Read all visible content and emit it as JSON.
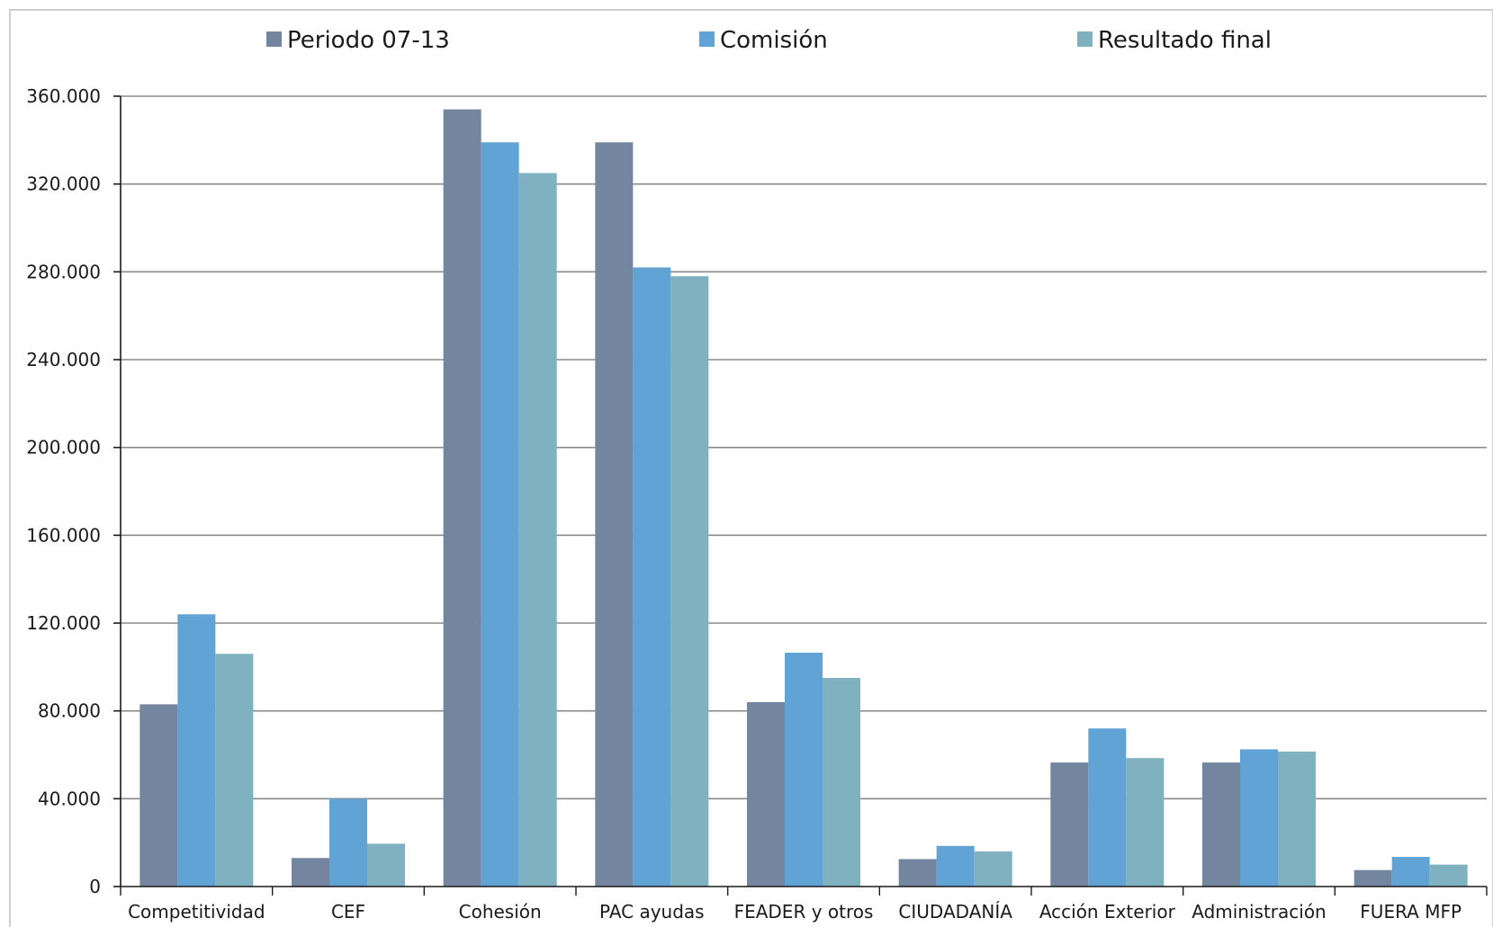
{
  "chart_data": {
    "type": "bar",
    "title": "",
    "xlabel": "",
    "ylabel": "",
    "ylim": [
      0,
      360000
    ],
    "yticks": [
      0,
      40000,
      80000,
      120000,
      160000,
      200000,
      240000,
      280000,
      320000,
      360000
    ],
    "ytick_labels": [
      "0",
      "40.000",
      "80.000",
      "120.000",
      "160.000",
      "200.000",
      "240.000",
      "280.000",
      "320.000",
      "360.000"
    ],
    "grid": true,
    "legend_position": "top",
    "categories": [
      "Competitividad",
      "CEF",
      "Cohesión",
      "PAC ayudas",
      "FEADER y otros",
      "CIUDADANÍA",
      "Acción Exterior",
      "Administración",
      "FUERA MFP"
    ],
    "series": [
      {
        "name": "Periodo 07-13",
        "color": "#74869f",
        "values": [
          83000,
          13000,
          354000,
          339000,
          84000,
          12500,
          56500,
          56500,
          7500
        ]
      },
      {
        "name": "Comisión",
        "color": "#62a3d6",
        "values": [
          124000,
          40000,
          339000,
          282000,
          106500,
          18500,
          72000,
          62500,
          13500
        ]
      },
      {
        "name": "Resultado final",
        "color": "#7fb1c1",
        "values": [
          106000,
          19500,
          325000,
          278000,
          95000,
          16000,
          58500,
          61500,
          10000
        ]
      }
    ]
  }
}
